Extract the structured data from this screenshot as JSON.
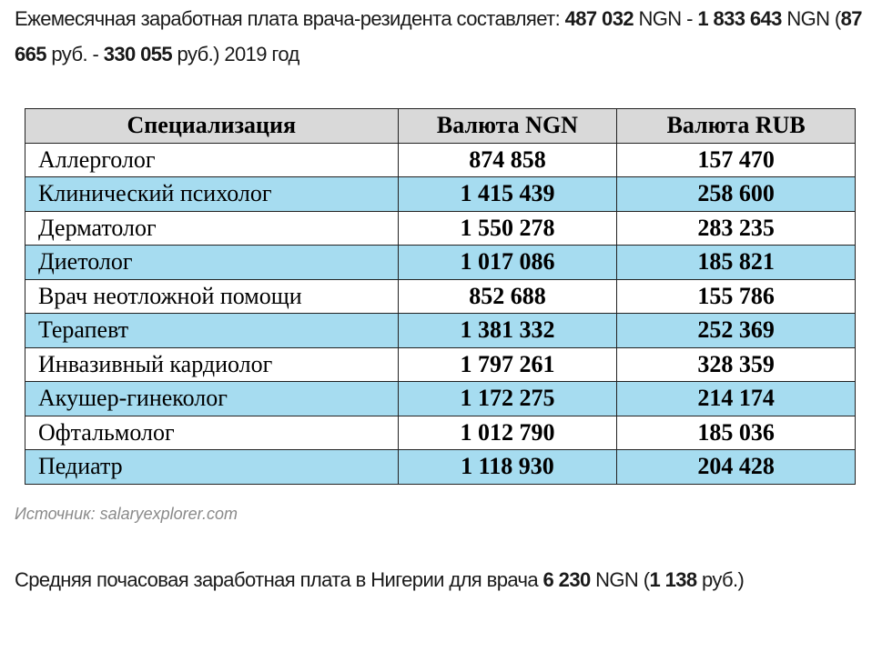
{
  "intro": {
    "text1": "Ежемесячная заработная плата врача-резидента составляет: ",
    "min_ngn": "487 032",
    "text2": " NGN - ",
    "max_ngn": "1 833 643",
    "text3": " NGN (",
    "min_rub": "87 665",
    "text4": " руб. - ",
    "max_rub": "330 055",
    "text5": " руб.) 2019 год"
  },
  "table": {
    "headers": [
      "Специализация",
      "Валюта NGN",
      "Валюта RUB"
    ],
    "rows": [
      {
        "name": "Аллерголог",
        "ngn": "874 858",
        "rub": "157 470"
      },
      {
        "name": "Клинический психолог",
        "ngn": "1 415 439",
        "rub": "258 600"
      },
      {
        "name": "Дерматолог",
        "ngn": "1 550 278",
        "rub": "283 235"
      },
      {
        "name": "Диетолог",
        "ngn": "1 017 086",
        "rub": "185 821"
      },
      {
        "name": "Врач неотложной помощи",
        "ngn": "852 688",
        "rub": "155 786"
      },
      {
        "name": "Терапевт",
        "ngn": "1 381 332",
        "rub": "252 369"
      },
      {
        "name": "Инвазивный кардиолог",
        "ngn": "1 797 261",
        "rub": "328 359"
      },
      {
        "name": "Акушер-гинеколог",
        "ngn": "1 172 275",
        "rub": "214 174"
      },
      {
        "name": "Офтальмолог",
        "ngn": "1 012 790",
        "rub": "185 036"
      },
      {
        "name": "Педиатр",
        "ngn": "1 118 930",
        "rub": "204 428"
      }
    ],
    "header_color": "#d9d9d9",
    "stripe_color": "#a6dcf0"
  },
  "source": "Источник: salaryexplorer.com",
  "outro": {
    "text1": "Средняя почасовая заработная плата в Нигерии для врача ",
    "ngn": "6 230",
    "text2": " NGN (",
    "rub": "1 138",
    "text3": " руб.)"
  }
}
